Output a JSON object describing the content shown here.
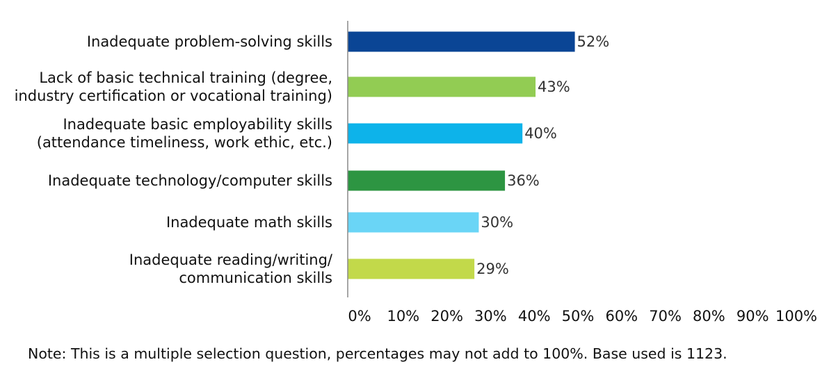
{
  "chart_data": {
    "type": "bar",
    "orientation": "horizontal",
    "categories": [
      [
        "Inadequate problem-solving skills"
      ],
      [
        "Lack of basic technical training (degree,",
        "industry certification or vocational training)"
      ],
      [
        "Inadequate basic employability skills",
        "(attendance timeliness, work ethic, etc.)"
      ],
      [
        "Inadequate technology/computer skills"
      ],
      [
        "Inadequate math skills"
      ],
      [
        "Inadequate reading/writing/",
        "communication skills"
      ]
    ],
    "values": [
      52,
      43,
      40,
      36,
      30,
      29
    ],
    "value_labels": [
      "52%",
      "43%",
      "40%",
      "36%",
      "30%",
      "29%"
    ],
    "colors": [
      "#0a4595",
      "#92cc53",
      "#0db3ea",
      "#2d9542",
      "#6ad5f6",
      "#c2d94a"
    ],
    "xlim": [
      0,
      100
    ],
    "x_ticks": [
      "0%",
      "10%",
      "20%",
      "30%",
      "40%",
      "50%",
      "60%",
      "70%",
      "80%",
      "90%",
      "100%"
    ],
    "grid": false
  },
  "note": "Note: This is a multiple selection question, percentages may not add to 100%. Base used is 1123."
}
